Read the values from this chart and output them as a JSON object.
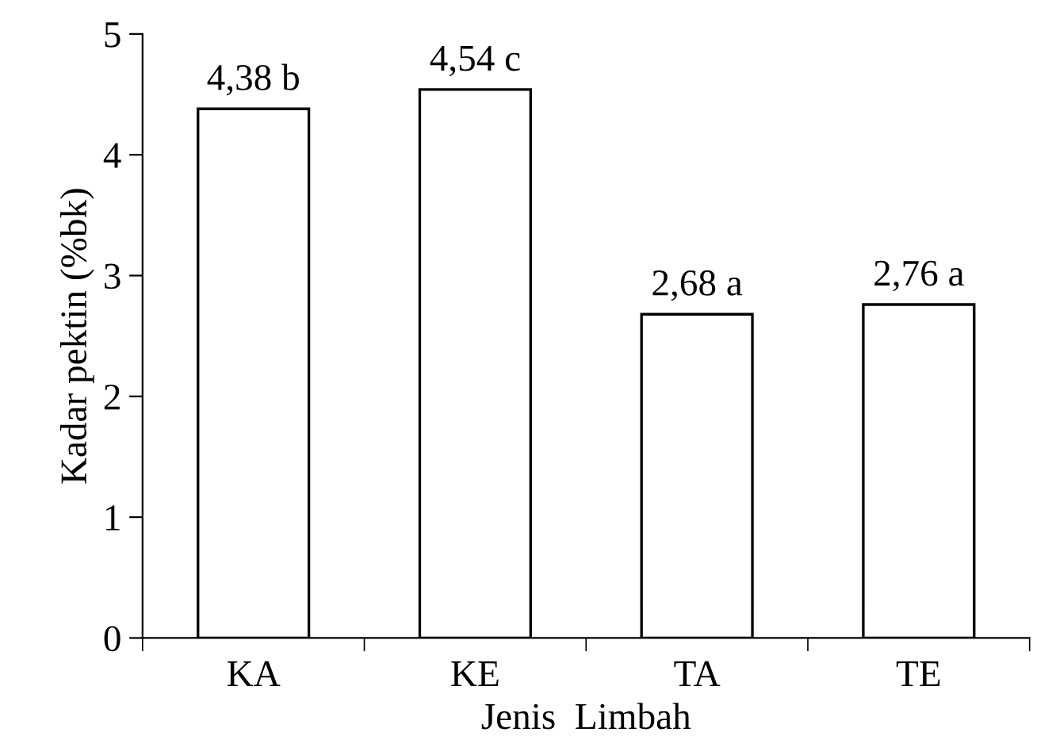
{
  "chart_data": {
    "type": "bar",
    "xlabel": "Jenis  Limbah",
    "ylabel": "Kadar pektin (%bk)",
    "categories": [
      "KA",
      "KE",
      "TA",
      "TE"
    ],
    "values": [
      4.38,
      4.54,
      2.68,
      2.76
    ],
    "value_labels": [
      "4,38 b",
      "4,54 c",
      "2,68 a",
      "2,76 a"
    ],
    "color": "#ffffff",
    "ylim": [
      0,
      5
    ],
    "yticks": [
      0,
      1,
      2,
      3,
      4,
      5
    ],
    "grid": false,
    "legend": false
  }
}
